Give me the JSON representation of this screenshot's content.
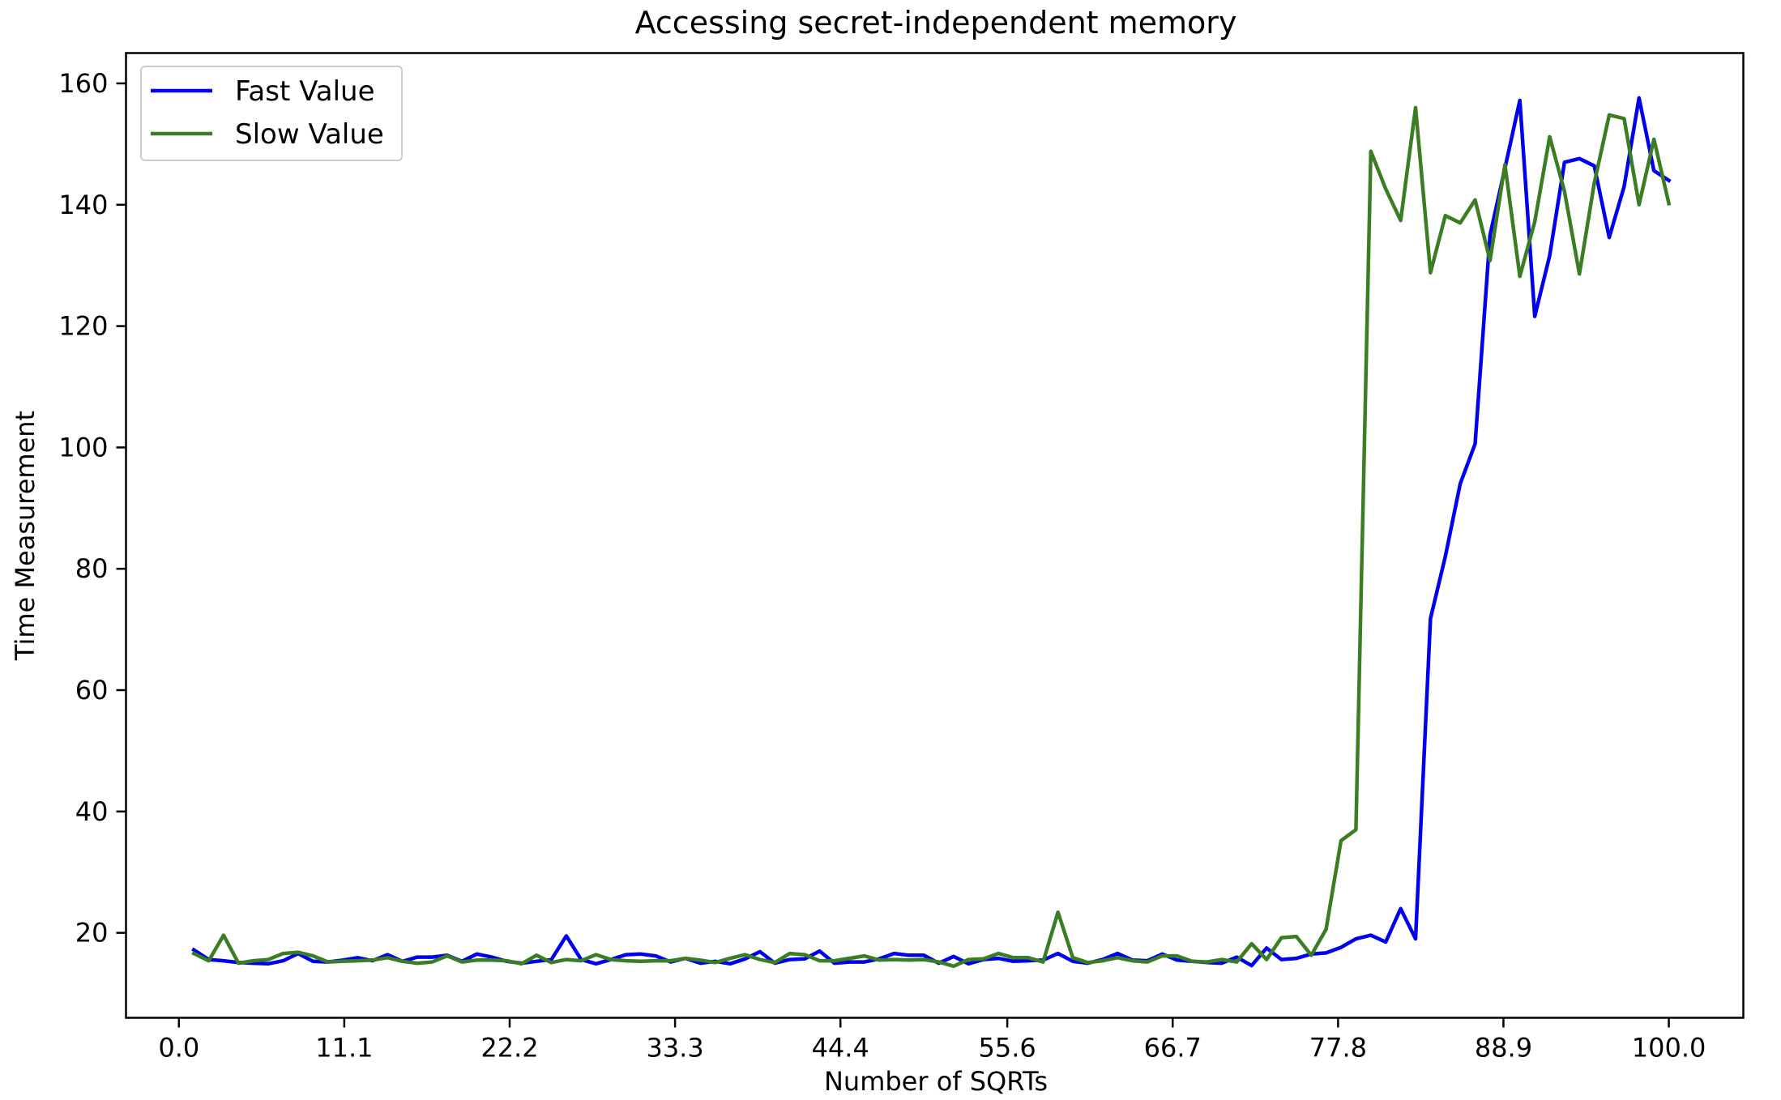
{
  "chart_data": {
    "type": "line",
    "title": "Accessing secret-independent memory",
    "xlabel": "Number of SQRTs",
    "ylabel": "Time Measurement",
    "xlim": [
      -3.55,
      105.0
    ],
    "ylim": [
      6.0,
      165.0
    ],
    "xticks": [
      0.0,
      11.1,
      22.2,
      33.3,
      44.4,
      55.6,
      66.7,
      77.8,
      88.9,
      100.0
    ],
    "xtick_labels": [
      "0.0",
      "11.1",
      "22.2",
      "33.3",
      "44.4",
      "55.6",
      "66.7",
      "77.8",
      "88.9",
      "100.0"
    ],
    "yticks": [
      20,
      40,
      60,
      80,
      100,
      120,
      140,
      160
    ],
    "ytick_labels": [
      "20",
      "40",
      "60",
      "80",
      "100",
      "120",
      "140",
      "160"
    ],
    "grid": false,
    "legend_position": "upper left",
    "x": [
      1,
      2,
      3,
      4,
      5,
      6,
      7,
      8,
      9,
      10,
      11,
      12,
      13,
      14,
      15,
      16,
      17,
      18,
      19,
      20,
      21,
      22,
      23,
      24,
      25,
      26,
      27,
      28,
      29,
      30,
      31,
      32,
      33,
      34,
      35,
      36,
      37,
      38,
      39,
      40,
      41,
      42,
      43,
      44,
      45,
      46,
      47,
      48,
      49,
      50,
      51,
      52,
      53,
      54,
      55,
      56,
      57,
      58,
      59,
      60,
      61,
      62,
      63,
      64,
      65,
      66,
      67,
      68,
      69,
      70,
      71,
      72,
      73,
      74,
      75,
      76,
      77,
      78,
      79,
      80,
      81,
      82,
      83,
      84,
      85,
      86,
      87,
      88,
      89,
      90,
      91,
      92,
      93,
      94,
      95,
      96,
      97,
      98,
      99,
      100
    ],
    "series": [
      {
        "name": "Fast Value",
        "color": "#0000ee",
        "values": [
          17.2,
          15.6,
          15.4,
          15.1,
          15.0,
          14.9,
          15.4,
          16.6,
          15.3,
          15.2,
          15.5,
          15.9,
          15.4,
          16.4,
          15.3,
          16.0,
          16.0,
          16.3,
          15.3,
          16.5,
          16.0,
          15.3,
          15.0,
          15.3,
          15.6,
          19.5,
          15.6,
          14.9,
          15.6,
          16.4,
          16.5,
          16.2,
          15.2,
          15.8,
          15.0,
          15.3,
          14.9,
          15.7,
          16.9,
          15.0,
          15.6,
          15.7,
          17.0,
          15.0,
          15.2,
          15.2,
          15.7,
          16.6,
          16.3,
          16.3,
          15.0,
          16.1,
          14.9,
          15.6,
          15.8,
          15.3,
          15.4,
          15.5,
          16.6,
          15.3,
          15.0,
          15.6,
          16.6,
          15.5,
          15.4,
          16.5,
          15.5,
          15.3,
          15.1,
          15.0,
          16.0,
          14.6,
          17.5,
          15.6,
          15.8,
          16.5,
          16.7,
          17.6,
          19.0,
          19.6,
          18.5,
          24.0,
          19.0,
          71.8,
          82.0,
          94.0,
          100.6,
          135.0,
          146.0,
          157.2,
          121.6,
          131.6,
          147.0,
          147.6,
          146.4,
          134.6,
          143.0,
          157.6,
          145.6,
          144.0
        ]
      },
      {
        "name": "Slow Value",
        "color": "#3a7d22",
        "values": [
          16.6,
          15.4,
          19.6,
          15.0,
          15.4,
          15.6,
          16.6,
          16.8,
          16.2,
          15.2,
          15.3,
          15.4,
          15.5,
          15.9,
          15.3,
          15.0,
          15.2,
          16.2,
          15.2,
          15.5,
          15.5,
          15.4,
          14.9,
          16.3,
          15.1,
          15.6,
          15.4,
          16.4,
          15.6,
          15.4,
          15.3,
          15.4,
          15.4,
          15.8,
          15.5,
          15.1,
          15.8,
          16.4,
          15.6,
          15.1,
          16.6,
          16.4,
          15.4,
          15.4,
          15.8,
          16.2,
          15.5,
          15.6,
          15.5,
          15.6,
          15.2,
          14.5,
          15.6,
          15.7,
          16.6,
          15.9,
          15.9,
          15.2,
          23.4,
          15.9,
          15.1,
          15.4,
          15.9,
          15.4,
          15.2,
          16.2,
          16.2,
          15.3,
          15.2,
          15.6,
          15.2,
          18.2,
          15.6,
          19.2,
          19.4,
          16.3,
          20.6,
          35.2,
          37.0,
          148.8,
          142.6,
          137.4,
          156.0,
          128.8,
          138.2,
          137.0,
          140.8,
          130.8,
          146.6,
          128.2,
          137.2,
          151.2,
          142.2,
          128.6,
          143.6,
          154.8,
          154.2,
          140.0,
          150.8,
          140.2
        ]
      }
    ]
  }
}
